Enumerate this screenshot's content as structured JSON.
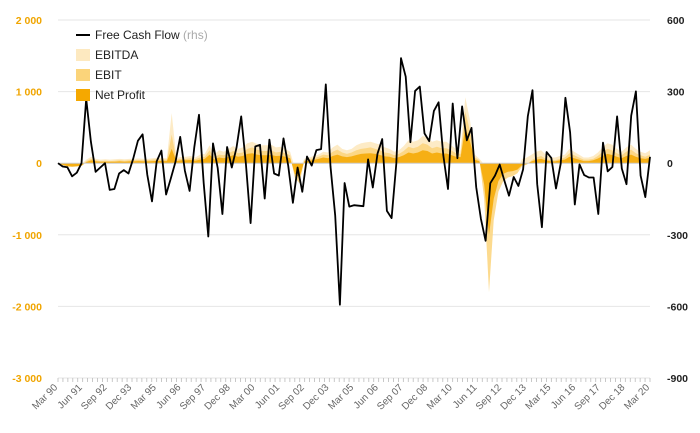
{
  "chart_data": {
    "type": "area",
    "left_axis": {
      "min": -3000,
      "max": 2000,
      "ticks": [
        2000,
        1000,
        0,
        -1000,
        -2000,
        -3000
      ],
      "tick_labels": [
        "2 000",
        "1 000",
        "0",
        "-1 000",
        "-2 000",
        "-3 000"
      ]
    },
    "right_axis": {
      "min": -900,
      "max": 600,
      "ticks": [
        600,
        300,
        0,
        -300,
        -600,
        -900
      ],
      "tick_labels": [
        "600",
        "300",
        "0",
        "-300",
        "-600",
        "-900"
      ]
    },
    "x_labels": [
      "Mar 90",
      "Jun 91",
      "Sep 92",
      "Dec 93",
      "Mar 95",
      "Jun 96",
      "Sep 97",
      "Dec 98",
      "Mar 00",
      "Jun 01",
      "Sep 02",
      "Dec 03",
      "Mar 05",
      "Jun 06",
      "Sep 07",
      "Dec 08",
      "Mar 10",
      "Jun 11",
      "Sep 12",
      "Dec 13",
      "Mar 15",
      "Jun 16",
      "Sep 17",
      "Dec 18",
      "Mar 20"
    ],
    "legend": [
      {
        "name": "Free Cash Flow",
        "suffix": "(rhs)",
        "color": "#000000",
        "kind": "line"
      },
      {
        "name": "EBITDA",
        "color": "#fde9c0",
        "kind": "area"
      },
      {
        "name": "EBIT",
        "color": "#fbd47a",
        "kind": "area"
      },
      {
        "name": "Net Profit",
        "color": "#f5a800",
        "kind": "area"
      }
    ],
    "series": [
      {
        "name": "Free Cash Flow",
        "axis": "right",
        "values": [
          0,
          -14,
          -17,
          -55,
          -40,
          0,
          270,
          90,
          -36,
          -18,
          0,
          -112,
          -108,
          -43,
          -29,
          -43,
          19,
          94,
          121,
          -49,
          -160,
          8,
          53,
          -131,
          -64,
          6,
          110,
          -32,
          -116,
          67,
          203,
          -84,
          -307,
          83,
          -20,
          -213,
          68,
          -18,
          65,
          196,
          -3,
          -251,
          70,
          77,
          -148,
          99,
          -43,
          -52,
          104,
          -10,
          -166,
          -18,
          -120,
          28,
          -10,
          55,
          59,
          330,
          -14,
          -219,
          -593,
          -83,
          -182,
          -176,
          -178,
          -180,
          16,
          -102,
          40,
          101,
          -200,
          -230,
          -2,
          440,
          363,
          88,
          303,
          321,
          125,
          92,
          219,
          255,
          33,
          -108,
          250,
          21,
          238,
          96,
          148,
          -100,
          -233,
          -325,
          -84,
          -52,
          -6,
          -72,
          -136,
          -58,
          -95,
          -26,
          196,
          306,
          -88,
          -268,
          47,
          22,
          -106,
          -2,
          274,
          130,
          -173,
          -5,
          -50,
          -60,
          -60,
          -213,
          86,
          -34,
          -16,
          196,
          -22,
          -88,
          199,
          301,
          -52,
          -142,
          27
        ]
      },
      {
        "name": "EBITDA",
        "axis": "left",
        "values": [
          0,
          -10,
          -20,
          -25,
          -20,
          -10,
          50,
          90,
          60,
          50,
          55,
          50,
          55,
          60,
          55,
          60,
          60,
          65,
          60,
          60,
          70,
          75,
          70,
          70,
          700,
          70,
          90,
          90,
          100,
          80,
          120,
          130,
          250,
          120,
          180,
          160,
          200,
          240,
          200,
          220,
          280,
          300,
          270,
          250,
          250,
          260,
          220,
          230,
          200,
          160,
          -60,
          -80,
          60,
          80,
          100,
          120,
          160,
          150,
          220,
          260,
          200,
          180,
          200,
          250,
          280,
          290,
          300,
          280,
          260,
          220,
          200,
          160,
          180,
          240,
          320,
          300,
          320,
          380,
          360,
          300,
          320,
          300,
          300,
          250,
          200,
          180,
          920,
          600,
          120,
          60,
          -20,
          -80,
          -120,
          -160,
          -120,
          -100,
          -90,
          -80,
          60,
          80,
          120,
          160,
          180,
          120,
          80,
          80,
          100,
          120,
          200,
          160,
          120,
          80,
          80,
          100,
          150,
          220,
          280,
          260,
          200,
          160,
          220,
          260,
          200,
          160,
          140,
          180
        ]
      },
      {
        "name": "EBIT",
        "axis": "left",
        "values": [
          0,
          -20,
          -40,
          -45,
          -40,
          -30,
          30,
          60,
          40,
          30,
          35,
          30,
          35,
          40,
          35,
          40,
          40,
          45,
          40,
          40,
          50,
          55,
          50,
          50,
          400,
          50,
          60,
          60,
          70,
          55,
          80,
          90,
          180,
          80,
          120,
          110,
          140,
          170,
          140,
          150,
          200,
          220,
          190,
          170,
          170,
          180,
          150,
          160,
          140,
          110,
          -200,
          -280,
          40,
          55,
          70,
          90,
          120,
          110,
          160,
          190,
          150,
          130,
          150,
          180,
          200,
          210,
          220,
          200,
          180,
          150,
          140,
          110,
          130,
          170,
          230,
          210,
          230,
          280,
          260,
          210,
          230,
          210,
          210,
          180,
          140,
          130,
          720,
          450,
          80,
          40,
          -500,
          -1800,
          -800,
          -400,
          -250,
          -200,
          -180,
          -140,
          -40,
          -20,
          40,
          80,
          100,
          60,
          40,
          40,
          60,
          80,
          140,
          110,
          80,
          50,
          50,
          60,
          100,
          160,
          200,
          180,
          140,
          110,
          160,
          190,
          140,
          110,
          90,
          120
        ]
      },
      {
        "name": "Net Profit",
        "axis": "left",
        "values": [
          0,
          -25,
          -45,
          -50,
          -45,
          -35,
          15,
          40,
          25,
          20,
          20,
          20,
          20,
          25,
          20,
          25,
          25,
          30,
          25,
          25,
          30,
          35,
          30,
          30,
          200,
          30,
          40,
          40,
          45,
          35,
          50,
          60,
          120,
          50,
          80,
          70,
          90,
          110,
          90,
          100,
          130,
          140,
          120,
          110,
          110,
          115,
          100,
          105,
          90,
          70,
          -150,
          -200,
          25,
          35,
          45,
          60,
          80,
          70,
          100,
          120,
          95,
          85,
          95,
          115,
          130,
          135,
          140,
          130,
          115,
          95,
          90,
          70,
          85,
          110,
          150,
          135,
          150,
          180,
          170,
          135,
          150,
          135,
          135,
          115,
          90,
          85,
          500,
          300,
          50,
          25,
          -300,
          -1000,
          -500,
          -250,
          -150,
          -120,
          -110,
          -90,
          -25,
          -10,
          25,
          50,
          60,
          40,
          25,
          25,
          40,
          50,
          90,
          70,
          50,
          30,
          30,
          40,
          65,
          100,
          130,
          115,
          90,
          70,
          100,
          120,
          90,
          70,
          60,
          75
        ]
      }
    ]
  }
}
